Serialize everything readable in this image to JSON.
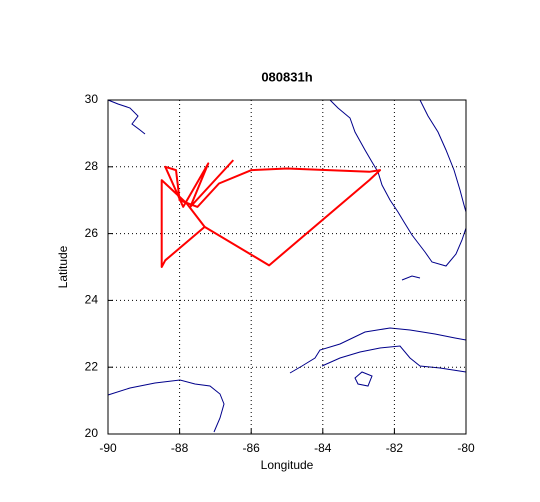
{
  "chart_data": {
    "type": "line",
    "title": "080831h",
    "x_label": "Longitude",
    "y_label": "Latitude",
    "xlim": [
      -90,
      -80
    ],
    "ylim": [
      20,
      30
    ],
    "xticks": [
      -90,
      -88,
      -86,
      -84,
      -82,
      -80
    ],
    "yticks": [
      20,
      22,
      24,
      26,
      28,
      30
    ],
    "grid": true,
    "x": [
      -86.5,
      -87.7,
      -87.2,
      -87.9,
      -88.4,
      -88.1,
      -88.0,
      -87.5,
      -86.9,
      -86.0,
      -85.0,
      -82.7,
      -82.4,
      -82.7,
      -85.5,
      -87.3,
      -87.8,
      -88.5,
      -88.5,
      -88.4,
      -87.3
    ],
    "series": [
      {
        "color": "#ff0000",
        "values": [
          28.2,
          26.8,
          28.1,
          26.8,
          28.0,
          27.9,
          27.0,
          26.8,
          27.5,
          27.9,
          27.95,
          27.85,
          27.9,
          27.6,
          25.05,
          26.2,
          26.9,
          27.6,
          25.0,
          25.2,
          26.2
        ]
      }
    ]
  }
}
